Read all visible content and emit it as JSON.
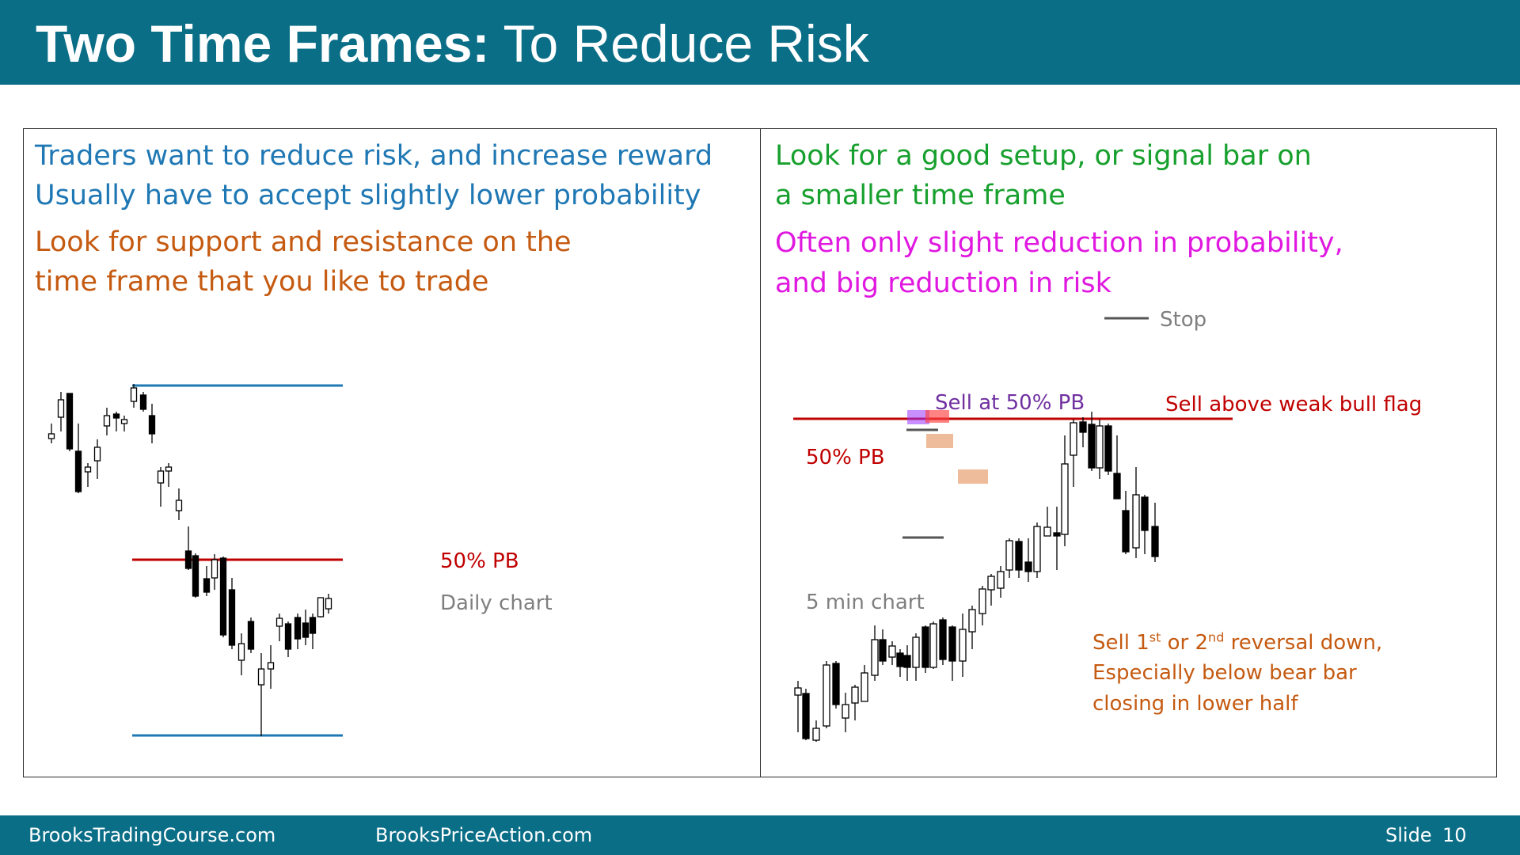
{
  "title": {
    "bold": "Two Time Frames:",
    "normal": " To Reduce Risk"
  },
  "left_panel": {
    "line1": "Traders want to reduce risk, and increase reward",
    "line2": "Usually have to accept slightly lower probability",
    "line3": "Look for support and resistance on the",
    "line4": "time frame that you like to trade",
    "label_pb": "50% PB",
    "label_chart": "Daily chart"
  },
  "right_panel": {
    "line1": "Look for a good setup, or signal bar on",
    "line2": "a smaller time frame",
    "line3": "Often only slight reduction in probability,",
    "line4": "and big reduction in risk",
    "legend_stop": "Stop",
    "label_sell_pb": "Sell at 50% PB",
    "label_sell_flag": "Sell above weak bull flag",
    "label_pb": "50% PB",
    "label_chart": "5 min chart",
    "note": {
      "l1_a": "Sell 1",
      "l1_sup1": "st",
      "l1_b": " or 2",
      "l1_sup2": "nd",
      "l1_c": " reversal down,",
      "l2": "Especially below bear bar",
      "l3": "closing in lower half"
    }
  },
  "footer": {
    "site1": "BrooksTradingCourse.com",
    "site2": "BrooksPriceAction.com",
    "slide_label": "Slide",
    "slide_number": "10"
  },
  "colors": {
    "header": "#0b6e87",
    "blue_text": "#1f78b4",
    "orange_text": "#c55a11",
    "green_text": "#17a02e",
    "magenta_text": "#e018e0",
    "dark_red": "#c00000",
    "purple": "#7030a0",
    "gray_text": "#7f7f7f",
    "support_line": "#1f78b4",
    "pb_line": "#c00000"
  }
}
